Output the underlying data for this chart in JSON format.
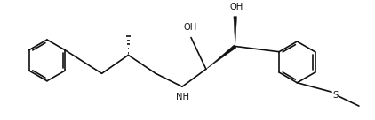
{
  "bg_color": "#ffffff",
  "line_color": "#111111",
  "line_width": 1.2,
  "font_size": 7.2,
  "figsize": [
    4.22,
    1.36
  ],
  "dpi": 100,
  "xlim": [
    0,
    4.22
  ],
  "ylim": [
    0,
    1.36
  ]
}
